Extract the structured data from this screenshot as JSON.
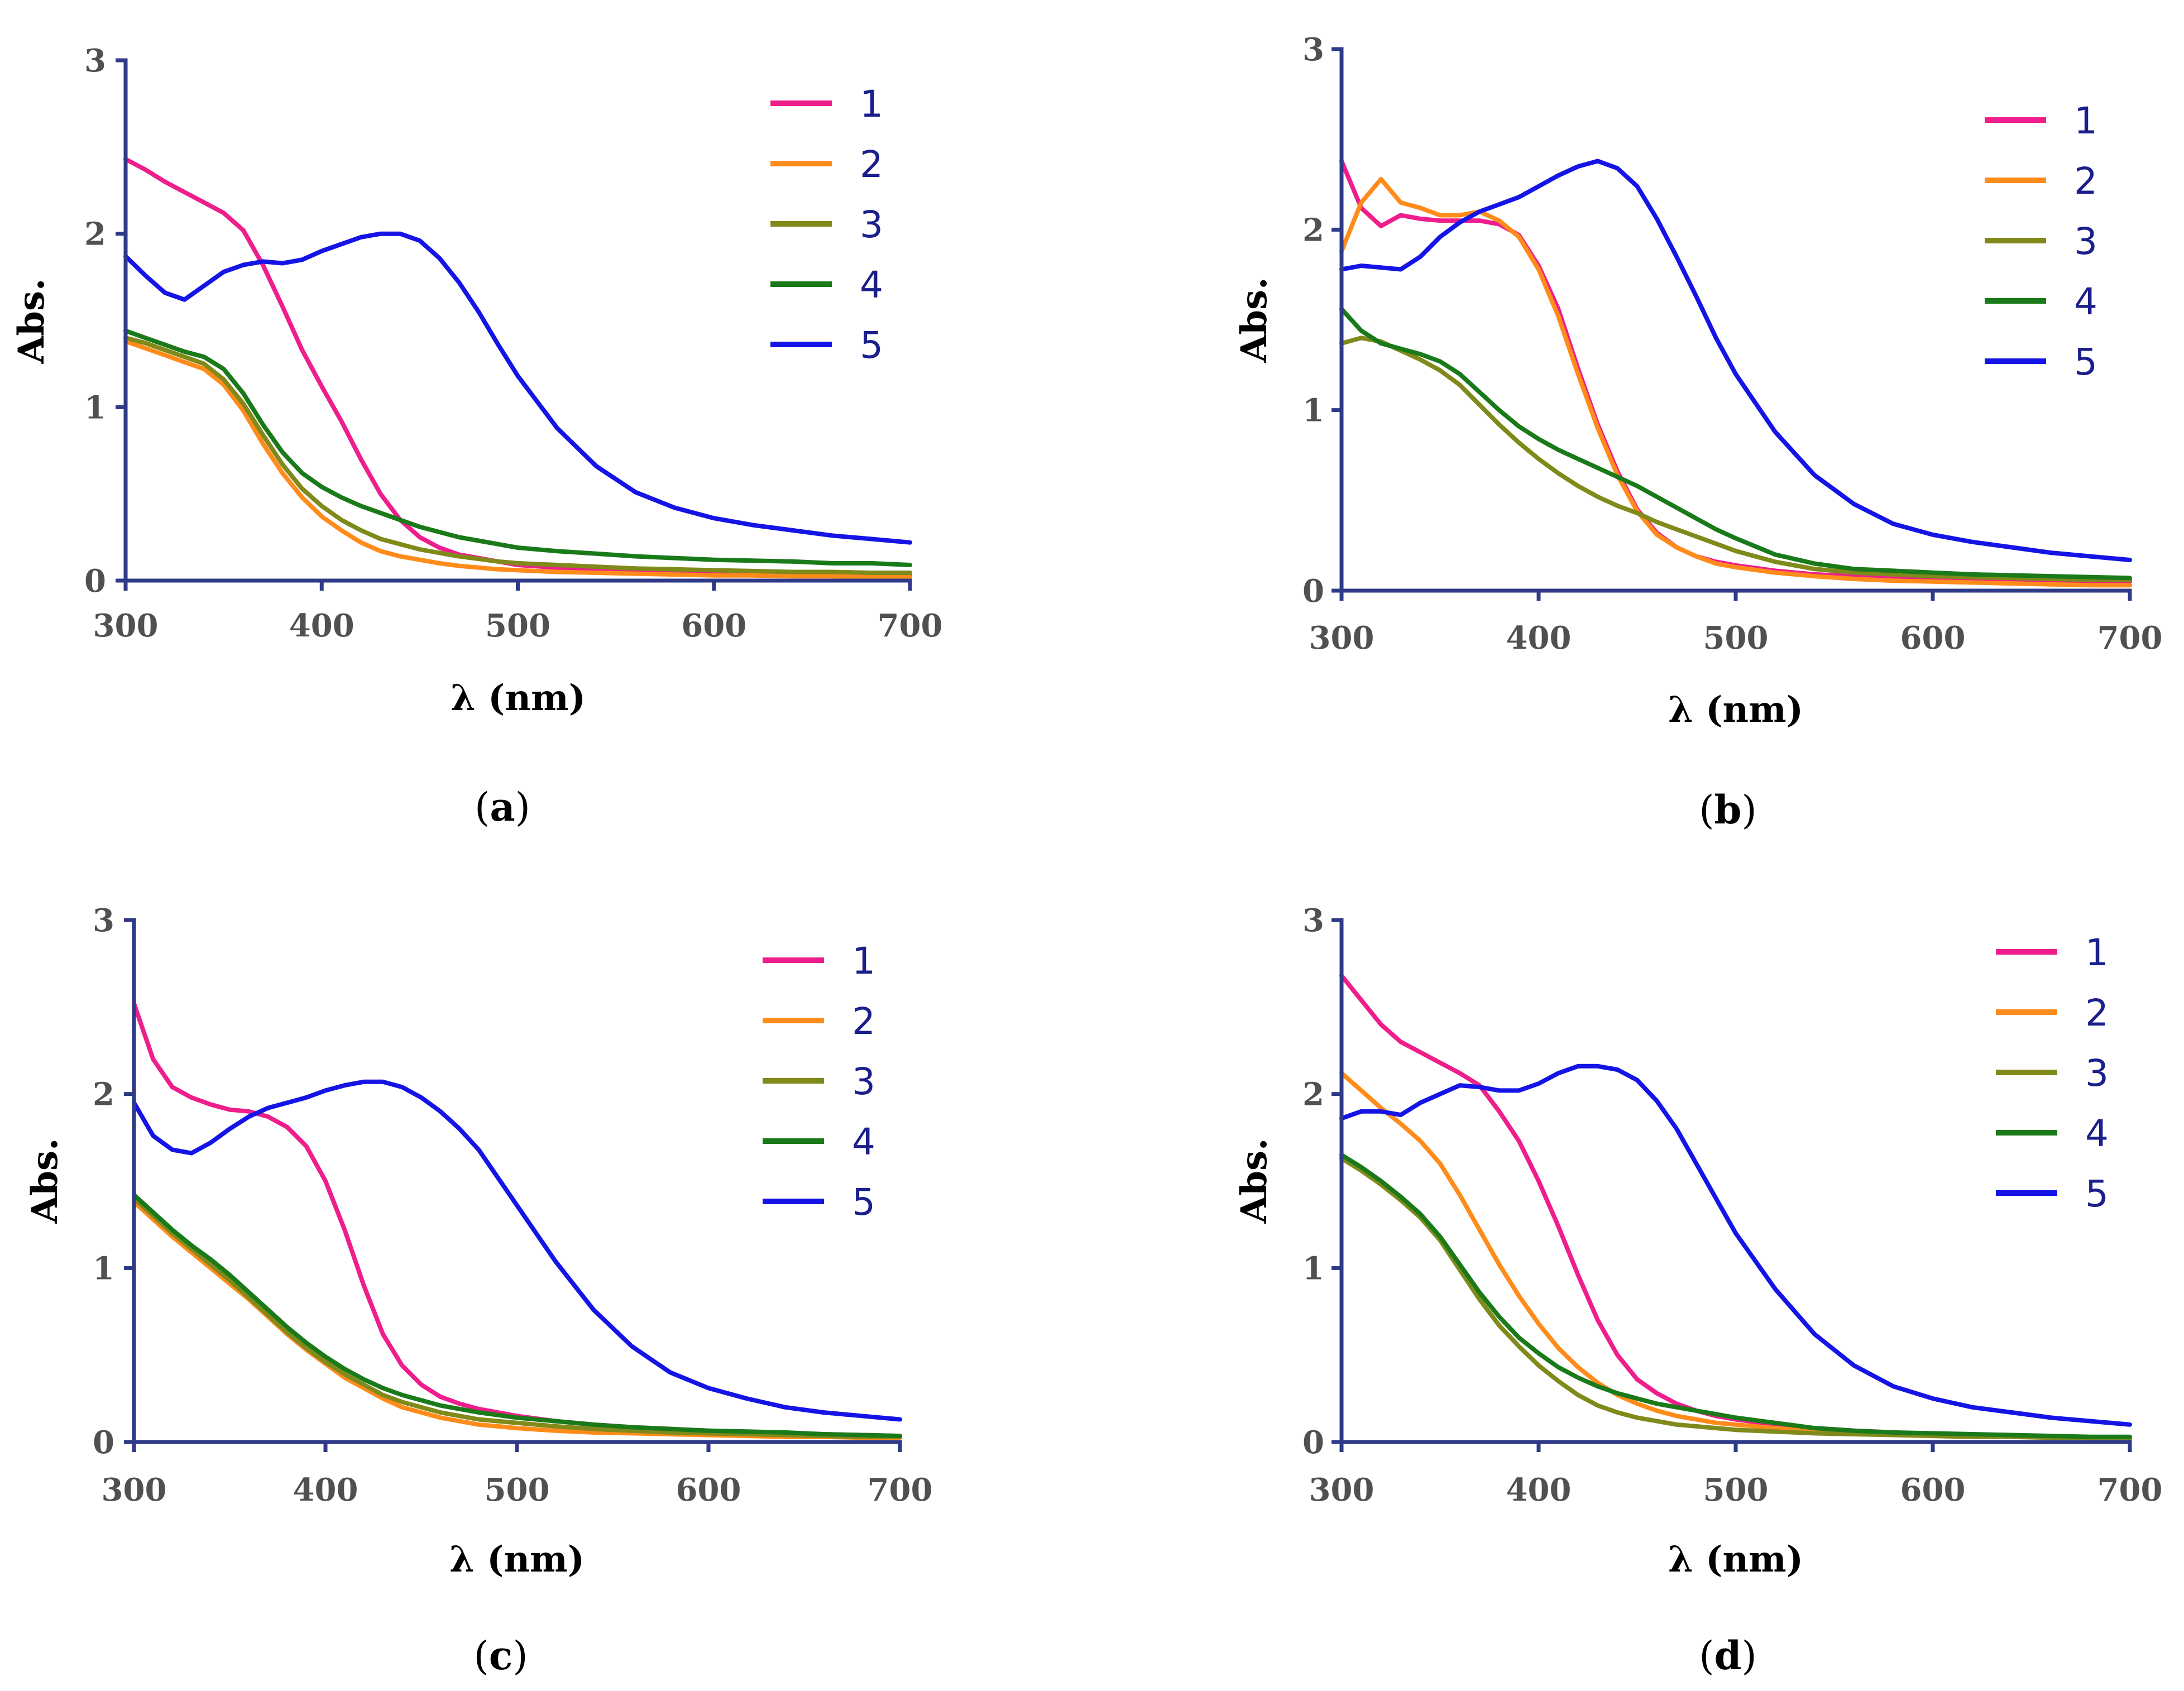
{
  "colors": {
    "1": "#ee1e8c",
    "2": "#ff8c1a",
    "3": "#808a1a",
    "4": "#1a7a1a",
    "5": "#1414e6",
    "axis": "#2e3a87",
    "tick_text": "#505050",
    "legend_text": "#1a1f8c"
  },
  "chart_data": [
    {
      "id": "a",
      "type": "line",
      "panel_label": {
        "open": "(",
        "letter": "a",
        "close": ")"
      },
      "xlabel": "λ (nm)",
      "ylabel": "Abs.",
      "xlim": [
        300,
        700
      ],
      "ylim": [
        0,
        3
      ],
      "xticks": [
        300,
        400,
        500,
        600,
        700
      ],
      "yticks": [
        0,
        1,
        2,
        3
      ],
      "legend": [
        "1",
        "2",
        "3",
        "4",
        "5"
      ],
      "x": [
        300,
        310,
        320,
        330,
        340,
        350,
        360,
        370,
        380,
        390,
        400,
        410,
        420,
        430,
        440,
        450,
        460,
        470,
        480,
        490,
        500,
        520,
        540,
        560,
        580,
        600,
        620,
        640,
        660,
        680,
        700
      ],
      "series": [
        {
          "name": "1",
          "values": [
            2.43,
            2.37,
            2.3,
            2.24,
            2.18,
            2.12,
            2.02,
            1.82,
            1.58,
            1.33,
            1.12,
            0.92,
            0.7,
            0.5,
            0.35,
            0.25,
            0.19,
            0.15,
            0.13,
            0.11,
            0.09,
            0.075,
            0.065,
            0.06,
            0.055,
            0.05,
            0.045,
            0.04,
            0.035,
            0.03,
            0.03
          ]
        },
        {
          "name": "2",
          "values": [
            1.38,
            1.34,
            1.3,
            1.26,
            1.22,
            1.13,
            0.98,
            0.79,
            0.62,
            0.48,
            0.37,
            0.29,
            0.22,
            0.17,
            0.14,
            0.12,
            0.1,
            0.085,
            0.075,
            0.065,
            0.06,
            0.05,
            0.045,
            0.04,
            0.035,
            0.03,
            0.03,
            0.025,
            0.025,
            0.02,
            0.02
          ]
        },
        {
          "name": "3",
          "values": [
            1.4,
            1.37,
            1.33,
            1.29,
            1.25,
            1.16,
            1.02,
            0.84,
            0.67,
            0.53,
            0.43,
            0.35,
            0.29,
            0.24,
            0.21,
            0.18,
            0.16,
            0.14,
            0.125,
            0.11,
            0.1,
            0.09,
            0.08,
            0.07,
            0.065,
            0.06,
            0.055,
            0.05,
            0.05,
            0.045,
            0.045
          ]
        },
        {
          "name": "4",
          "values": [
            1.44,
            1.4,
            1.36,
            1.32,
            1.29,
            1.22,
            1.08,
            0.9,
            0.74,
            0.62,
            0.54,
            0.48,
            0.43,
            0.39,
            0.35,
            0.31,
            0.28,
            0.25,
            0.23,
            0.21,
            0.19,
            0.17,
            0.155,
            0.14,
            0.13,
            0.12,
            0.115,
            0.11,
            0.1,
            0.1,
            0.09
          ]
        },
        {
          "name": "5",
          "values": [
            1.87,
            1.76,
            1.66,
            1.62,
            1.7,
            1.78,
            1.82,
            1.84,
            1.83,
            1.85,
            1.9,
            1.94,
            1.98,
            2.0,
            2.0,
            1.96,
            1.86,
            1.72,
            1.55,
            1.36,
            1.18,
            0.88,
            0.66,
            0.51,
            0.42,
            0.36,
            0.32,
            0.29,
            0.26,
            0.24,
            0.22
          ]
        }
      ]
    },
    {
      "id": "b",
      "type": "line",
      "panel_label": {
        "open": "(",
        "letter": "b",
        "close": ")"
      },
      "xlabel": "λ (nm)",
      "ylabel": "Abs.",
      "xlim": [
        300,
        700
      ],
      "ylim": [
        0,
        3
      ],
      "xticks": [
        300,
        400,
        500,
        600,
        700
      ],
      "yticks": [
        0,
        1,
        2,
        3
      ],
      "legend": [
        "1",
        "2",
        "3",
        "4",
        "5"
      ],
      "x": [
        300,
        310,
        320,
        330,
        340,
        350,
        360,
        370,
        380,
        390,
        400,
        410,
        420,
        430,
        440,
        450,
        460,
        470,
        480,
        490,
        500,
        520,
        540,
        560,
        580,
        600,
        620,
        640,
        660,
        680,
        700
      ],
      "series": [
        {
          "name": "1",
          "values": [
            2.38,
            2.12,
            2.02,
            2.08,
            2.06,
            2.05,
            2.05,
            2.05,
            2.03,
            1.97,
            1.8,
            1.56,
            1.23,
            0.92,
            0.66,
            0.45,
            0.32,
            0.24,
            0.19,
            0.16,
            0.14,
            0.11,
            0.09,
            0.08,
            0.07,
            0.065,
            0.06,
            0.055,
            0.05,
            0.05,
            0.05
          ]
        },
        {
          "name": "2",
          "values": [
            1.88,
            2.15,
            2.28,
            2.15,
            2.12,
            2.08,
            2.08,
            2.1,
            2.05,
            1.96,
            1.78,
            1.52,
            1.2,
            0.9,
            0.64,
            0.44,
            0.31,
            0.24,
            0.19,
            0.15,
            0.13,
            0.1,
            0.08,
            0.065,
            0.055,
            0.05,
            0.045,
            0.04,
            0.035,
            0.03,
            0.03
          ]
        },
        {
          "name": "3",
          "values": [
            1.37,
            1.4,
            1.38,
            1.33,
            1.28,
            1.22,
            1.14,
            1.03,
            0.92,
            0.82,
            0.73,
            0.65,
            0.58,
            0.52,
            0.47,
            0.43,
            0.38,
            0.34,
            0.3,
            0.26,
            0.22,
            0.16,
            0.12,
            0.1,
            0.09,
            0.08,
            0.075,
            0.07,
            0.065,
            0.06,
            0.06
          ]
        },
        {
          "name": "4",
          "values": [
            1.56,
            1.44,
            1.37,
            1.34,
            1.31,
            1.27,
            1.2,
            1.1,
            1.0,
            0.91,
            0.84,
            0.78,
            0.73,
            0.68,
            0.63,
            0.58,
            0.52,
            0.46,
            0.4,
            0.34,
            0.29,
            0.2,
            0.15,
            0.12,
            0.11,
            0.1,
            0.09,
            0.085,
            0.08,
            0.075,
            0.07
          ]
        },
        {
          "name": "5",
          "values": [
            1.78,
            1.8,
            1.79,
            1.78,
            1.85,
            1.96,
            2.04,
            2.1,
            2.14,
            2.18,
            2.24,
            2.3,
            2.35,
            2.38,
            2.34,
            2.24,
            2.06,
            1.85,
            1.63,
            1.4,
            1.2,
            0.88,
            0.64,
            0.48,
            0.37,
            0.31,
            0.27,
            0.24,
            0.21,
            0.19,
            0.17
          ]
        }
      ]
    },
    {
      "id": "c",
      "type": "line",
      "panel_label": {
        "open": "(",
        "letter": "c",
        "close": ")"
      },
      "xlabel": "λ (nm)",
      "ylabel": "Abs.",
      "xlim": [
        300,
        700
      ],
      "ylim": [
        0,
        3
      ],
      "xticks": [
        300,
        400,
        500,
        600,
        700
      ],
      "yticks": [
        0,
        1,
        2,
        3
      ],
      "legend": [
        "1",
        "2",
        "3",
        "4",
        "5"
      ],
      "x": [
        300,
        310,
        320,
        330,
        340,
        350,
        360,
        370,
        380,
        390,
        400,
        410,
        420,
        430,
        440,
        450,
        460,
        470,
        480,
        490,
        500,
        520,
        540,
        560,
        580,
        600,
        620,
        640,
        660,
        680,
        700
      ],
      "series": [
        {
          "name": "1",
          "values": [
            2.52,
            2.2,
            2.04,
            1.98,
            1.94,
            1.91,
            1.9,
            1.87,
            1.81,
            1.7,
            1.5,
            1.22,
            0.9,
            0.62,
            0.44,
            0.33,
            0.26,
            0.22,
            0.19,
            0.17,
            0.15,
            0.12,
            0.1,
            0.085,
            0.075,
            0.065,
            0.055,
            0.05,
            0.045,
            0.04,
            0.035
          ]
        },
        {
          "name": "2",
          "values": [
            1.38,
            1.28,
            1.18,
            1.09,
            1.0,
            0.91,
            0.82,
            0.72,
            0.62,
            0.53,
            0.45,
            0.37,
            0.31,
            0.25,
            0.2,
            0.17,
            0.14,
            0.12,
            0.1,
            0.09,
            0.08,
            0.065,
            0.055,
            0.05,
            0.045,
            0.04,
            0.035,
            0.03,
            0.03,
            0.025,
            0.025
          ]
        },
        {
          "name": "3",
          "values": [
            1.4,
            1.3,
            1.2,
            1.11,
            1.02,
            0.93,
            0.83,
            0.73,
            0.63,
            0.54,
            0.46,
            0.39,
            0.33,
            0.27,
            0.23,
            0.2,
            0.17,
            0.15,
            0.13,
            0.12,
            0.11,
            0.09,
            0.075,
            0.065,
            0.055,
            0.05,
            0.045,
            0.04,
            0.035,
            0.03,
            0.03
          ]
        },
        {
          "name": "4",
          "values": [
            1.42,
            1.32,
            1.22,
            1.13,
            1.05,
            0.96,
            0.86,
            0.76,
            0.66,
            0.57,
            0.49,
            0.42,
            0.36,
            0.31,
            0.27,
            0.24,
            0.21,
            0.19,
            0.17,
            0.155,
            0.14,
            0.12,
            0.1,
            0.085,
            0.075,
            0.065,
            0.06,
            0.055,
            0.045,
            0.04,
            0.035
          ]
        },
        {
          "name": "5",
          "values": [
            1.95,
            1.76,
            1.68,
            1.66,
            1.72,
            1.8,
            1.87,
            1.92,
            1.95,
            1.98,
            2.02,
            2.05,
            2.07,
            2.07,
            2.04,
            1.98,
            1.9,
            1.8,
            1.68,
            1.52,
            1.36,
            1.04,
            0.76,
            0.55,
            0.4,
            0.31,
            0.25,
            0.2,
            0.17,
            0.15,
            0.13
          ]
        }
      ]
    },
    {
      "id": "d",
      "type": "line",
      "panel_label": {
        "open": "(",
        "letter": "d",
        "close": ")"
      },
      "xlabel": "λ (nm)",
      "ylabel": "Abs.",
      "xlim": [
        300,
        700
      ],
      "ylim": [
        0,
        3
      ],
      "xticks": [
        300,
        400,
        500,
        600,
        700
      ],
      "yticks": [
        0,
        1,
        2,
        3
      ],
      "legend": [
        "1",
        "2",
        "3",
        "4",
        "5"
      ],
      "x": [
        300,
        310,
        320,
        330,
        340,
        350,
        360,
        370,
        380,
        390,
        400,
        410,
        420,
        430,
        440,
        450,
        460,
        470,
        480,
        490,
        500,
        520,
        540,
        560,
        580,
        600,
        620,
        640,
        660,
        680,
        700
      ],
      "series": [
        {
          "name": "1",
          "values": [
            2.68,
            2.54,
            2.4,
            2.3,
            2.24,
            2.18,
            2.12,
            2.05,
            1.9,
            1.73,
            1.5,
            1.24,
            0.96,
            0.7,
            0.5,
            0.36,
            0.28,
            0.22,
            0.18,
            0.15,
            0.13,
            0.1,
            0.08,
            0.065,
            0.055,
            0.045,
            0.04,
            0.035,
            0.03,
            0.025,
            0.02
          ]
        },
        {
          "name": "2",
          "values": [
            2.12,
            2.02,
            1.92,
            1.83,
            1.73,
            1.6,
            1.42,
            1.22,
            1.02,
            0.84,
            0.68,
            0.54,
            0.43,
            0.34,
            0.27,
            0.22,
            0.18,
            0.15,
            0.13,
            0.11,
            0.1,
            0.08,
            0.06,
            0.05,
            0.045,
            0.04,
            0.035,
            0.03,
            0.03,
            0.025,
            0.025
          ]
        },
        {
          "name": "3",
          "values": [
            1.63,
            1.56,
            1.48,
            1.39,
            1.29,
            1.16,
            0.99,
            0.82,
            0.67,
            0.55,
            0.44,
            0.35,
            0.27,
            0.21,
            0.17,
            0.14,
            0.12,
            0.1,
            0.09,
            0.08,
            0.07,
            0.06,
            0.05,
            0.045,
            0.04,
            0.035,
            0.03,
            0.03,
            0.025,
            0.025,
            0.02
          ]
        },
        {
          "name": "4",
          "values": [
            1.65,
            1.58,
            1.5,
            1.41,
            1.31,
            1.18,
            1.02,
            0.86,
            0.72,
            0.6,
            0.51,
            0.43,
            0.37,
            0.32,
            0.28,
            0.25,
            0.22,
            0.2,
            0.18,
            0.16,
            0.14,
            0.11,
            0.08,
            0.065,
            0.055,
            0.05,
            0.045,
            0.04,
            0.035,
            0.03,
            0.03
          ]
        },
        {
          "name": "5",
          "values": [
            1.86,
            1.9,
            1.9,
            1.88,
            1.95,
            2.0,
            2.05,
            2.04,
            2.02,
            2.02,
            2.06,
            2.12,
            2.16,
            2.16,
            2.14,
            2.08,
            1.96,
            1.8,
            1.6,
            1.4,
            1.2,
            0.88,
            0.62,
            0.44,
            0.32,
            0.25,
            0.2,
            0.17,
            0.14,
            0.12,
            0.1
          ]
        }
      ]
    }
  ]
}
